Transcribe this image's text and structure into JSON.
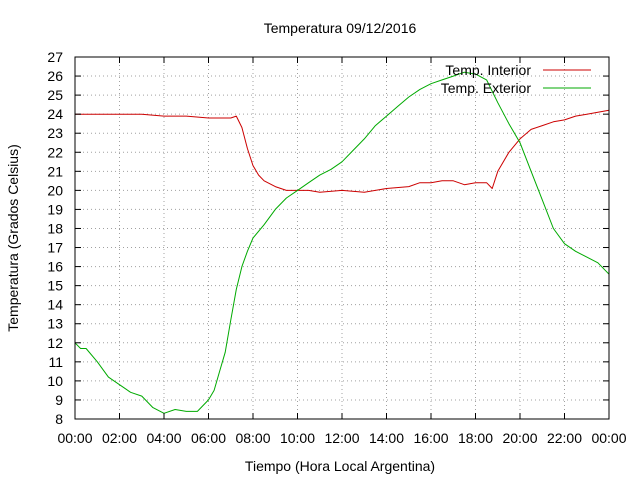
{
  "chart_data": {
    "type": "line",
    "title": "Temperatura 09/12/2016",
    "xlabel": "Tiempo (Hora Local Argentina)",
    "ylabel": "Temperatura (Grados Celsius)",
    "xlim": [
      "00:00",
      "24:00"
    ],
    "ylim": [
      8,
      27
    ],
    "grid": true,
    "legend": "top-right",
    "x_ticks": [
      "00:00",
      "02:00",
      "04:00",
      "06:00",
      "08:00",
      "10:00",
      "12:00",
      "14:00",
      "16:00",
      "18:00",
      "20:00",
      "22:00",
      "00:00"
    ],
    "y_ticks": [
      8,
      9,
      10,
      11,
      12,
      13,
      14,
      15,
      16,
      17,
      18,
      19,
      20,
      21,
      22,
      23,
      24,
      25,
      26,
      27
    ],
    "series": [
      {
        "name": "Temp. Interior",
        "color": "#cc0000",
        "x": [
          "00:00",
          "01:00",
          "01:30",
          "02:00",
          "03:00",
          "04:00",
          "05:00",
          "06:00",
          "07:00",
          "07:15",
          "07:30",
          "07:45",
          "08:00",
          "08:15",
          "08:30",
          "09:00",
          "09:30",
          "10:00",
          "10:30",
          "11:00",
          "12:00",
          "13:00",
          "14:00",
          "15:00",
          "15:30",
          "16:00",
          "16:30",
          "17:00",
          "17:30",
          "18:00",
          "18:30",
          "18:45",
          "19:00",
          "19:30",
          "20:00",
          "20:30",
          "21:00",
          "21:30",
          "22:00",
          "22:30",
          "23:00",
          "23:30",
          "24:00"
        ],
        "values": [
          24.0,
          24.0,
          24.0,
          24.0,
          24.0,
          23.9,
          23.9,
          23.8,
          23.8,
          23.9,
          23.3,
          22.2,
          21.3,
          20.8,
          20.5,
          20.2,
          20.0,
          20.0,
          20.0,
          19.9,
          20.0,
          19.9,
          20.1,
          20.2,
          20.4,
          20.4,
          20.5,
          20.5,
          20.3,
          20.4,
          20.4,
          20.1,
          21.0,
          22.0,
          22.7,
          23.2,
          23.4,
          23.6,
          23.7,
          23.9,
          24.0,
          24.1,
          24.2
        ]
      },
      {
        "name": "Temp. Exterior",
        "color": "#00aa00",
        "x": [
          "00:00",
          "00:15",
          "00:30",
          "01:00",
          "01:30",
          "02:00",
          "02:30",
          "03:00",
          "03:30",
          "04:00",
          "04:30",
          "05:00",
          "05:30",
          "06:00",
          "06:15",
          "06:30",
          "06:45",
          "07:00",
          "07:15",
          "07:30",
          "07:45",
          "08:00",
          "08:30",
          "09:00",
          "09:30",
          "10:00",
          "10:30",
          "11:00",
          "11:30",
          "12:00",
          "12:30",
          "13:00",
          "13:30",
          "14:00",
          "14:30",
          "15:00",
          "15:30",
          "16:00",
          "16:30",
          "17:00",
          "17:30",
          "18:00",
          "18:30",
          "19:00",
          "19:30",
          "20:00",
          "20:30",
          "21:00",
          "21:30",
          "22:00",
          "22:30",
          "23:00",
          "23:30",
          "24:00"
        ],
        "values": [
          12.0,
          11.7,
          11.7,
          11.0,
          10.2,
          9.8,
          9.4,
          9.2,
          8.6,
          8.3,
          8.5,
          8.4,
          8.4,
          9.0,
          9.5,
          10.5,
          11.5,
          13.2,
          14.8,
          16.0,
          16.8,
          17.5,
          18.2,
          19.0,
          19.6,
          20.0,
          20.4,
          20.8,
          21.1,
          21.5,
          22.1,
          22.7,
          23.4,
          23.9,
          24.4,
          24.9,
          25.3,
          25.6,
          25.8,
          26.0,
          26.2,
          26.1,
          25.8,
          24.6,
          23.5,
          22.5,
          21.0,
          19.5,
          18.0,
          17.2,
          16.8,
          16.5,
          16.2,
          15.6
        ]
      }
    ]
  }
}
